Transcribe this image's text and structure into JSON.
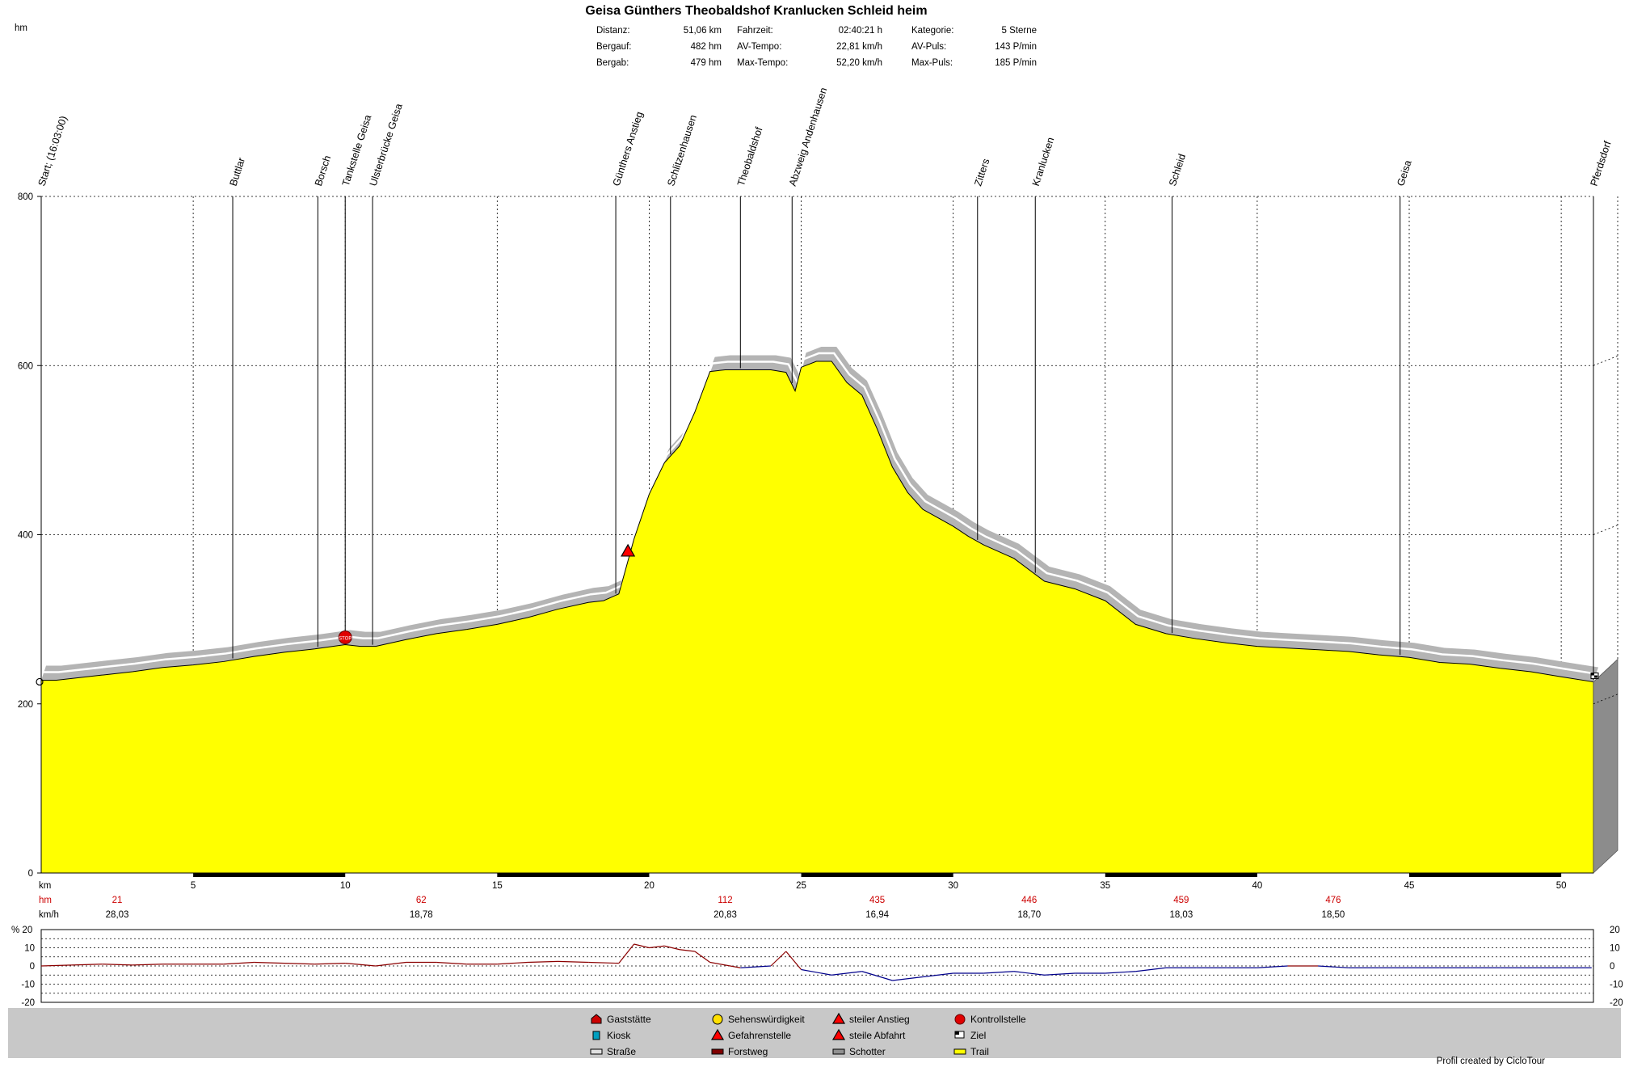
{
  "chart_data": {
    "type": "area",
    "title": "Geisa Günthers Theobaldshof Kranlucken Schleid heim",
    "yunit_label": "hm",
    "stats": [
      {
        "label": "Distanz:",
        "value": "51,06 km"
      },
      {
        "label": "Bergauf:",
        "value": "482 hm"
      },
      {
        "label": "Bergab:",
        "value": "479 hm"
      },
      {
        "label": "Fahrzeit:",
        "value": "02:40:21 h"
      },
      {
        "label": "AV-Tempo:",
        "value": "22,81 km/h"
      },
      {
        "label": "Max-Tempo:",
        "value": "52,20 km/h"
      },
      {
        "label": "Kategorie:",
        "value": "5 Sterne"
      },
      {
        "label": "AV-Puls:",
        "value": "143 P/min"
      },
      {
        "label": "Max-Puls:",
        "value": "185 P/min"
      }
    ],
    "xlim": [
      0,
      51.06
    ],
    "ylim": [
      0,
      800
    ],
    "x_ticks": [
      5,
      10,
      15,
      20,
      25,
      30,
      35,
      40,
      45,
      50
    ],
    "y_ticks": [
      0,
      200,
      400,
      600,
      800
    ],
    "grid": true,
    "profile": {
      "x": [
        0,
        0.5,
        1,
        2,
        3,
        4,
        5,
        6,
        7,
        8,
        9,
        10,
        10.5,
        11,
        12,
        13,
        14,
        15,
        16,
        17,
        18,
        18.5,
        19,
        19.5,
        20,
        20.5,
        21,
        21.5,
        22,
        22.5,
        23,
        24,
        24.5,
        24.8,
        25,
        25.5,
        26,
        26.5,
        27,
        27.5,
        28,
        28.5,
        29,
        30,
        30.5,
        31,
        32,
        33,
        34,
        35,
        36,
        37,
        38,
        39,
        40,
        41,
        42,
        43,
        44,
        45,
        46,
        47,
        48,
        49,
        50,
        51.06
      ],
      "y": [
        228,
        228,
        230,
        234,
        238,
        243,
        246,
        250,
        256,
        261,
        265,
        270,
        268,
        268,
        276,
        283,
        288,
        294,
        302,
        312,
        320,
        322,
        330,
        395,
        448,
        485,
        505,
        545,
        593,
        595,
        595,
        595,
        592,
        570,
        598,
        605,
        605,
        580,
        565,
        525,
        480,
        450,
        430,
        410,
        398,
        388,
        372,
        345,
        336,
        322,
        294,
        283,
        277,
        272,
        268,
        266,
        264,
        262,
        258,
        255,
        249,
        247,
        242,
        238,
        232,
        226
      ]
    },
    "speed_profile": {
      "ylim": [
        -20,
        20
      ],
      "y_ticks": [
        -20,
        -10,
        0,
        10,
        20
      ],
      "x": [
        0,
        1,
        2,
        3,
        4,
        5,
        6,
        7,
        8,
        9,
        10,
        11,
        12,
        13,
        14,
        15,
        16,
        17,
        18,
        19,
        19.5,
        20,
        20.5,
        21,
        21.5,
        22,
        23,
        24,
        24.5,
        25,
        26,
        27,
        28,
        29,
        30,
        31,
        32,
        33,
        34,
        35,
        36,
        37,
        38,
        39,
        40,
        41,
        42,
        43,
        44,
        45,
        46,
        47,
        48,
        49,
        50,
        51
      ],
      "y": [
        0,
        0.5,
        1,
        0.5,
        1,
        1,
        1,
        2,
        1.5,
        1,
        1.5,
        0,
        2,
        2,
        1,
        1,
        2,
        2.5,
        2,
        1.5,
        12,
        10,
        11,
        9,
        8,
        2,
        -1,
        0,
        8,
        -2,
        -5,
        -3,
        -8,
        -6,
        -4,
        -4,
        -3,
        -5,
        -4,
        -4,
        -3,
        -1,
        -1,
        -1,
        -1,
        0,
        0,
        -1,
        -1,
        -1,
        -1,
        -1,
        -1,
        -1,
        -1,
        -1
      ]
    },
    "waypoints": [
      {
        "name": "Start; (16:03:00)",
        "km": 0
      },
      {
        "name": "Buttlar",
        "km": 6.3
      },
      {
        "name": "Borsch",
        "km": 9.1
      },
      {
        "name": "Tankstelle Geisa",
        "km": 10.0
      },
      {
        "name": "Ulsterbrücke Geisa",
        "km": 10.9
      },
      {
        "name": "Günthers Anstieg",
        "km": 18.9
      },
      {
        "name": "Schlitzenhausen",
        "km": 20.7
      },
      {
        "name": "Theobaldshof",
        "km": 23.0
      },
      {
        "name": "Abzweig Andenhausen",
        "km": 24.7
      },
      {
        "name": "Zitters",
        "km": 30.8
      },
      {
        "name": "Kranlucken",
        "km": 32.7
      },
      {
        "name": "Schleid",
        "km": 37.2
      },
      {
        "name": "Geisa",
        "km": 44.7
      },
      {
        "name": "Pferdsdorf",
        "km": 51.06
      }
    ],
    "segment_rows": {
      "km_label": "km",
      "hm_label": "hm",
      "kmh_label": "km/h",
      "hm_values": [
        {
          "km": 2.5,
          "value": "21"
        },
        {
          "km": 12.5,
          "value": "62"
        },
        {
          "km": 22.5,
          "value": "112"
        },
        {
          "km": 27.5,
          "value": "435"
        },
        {
          "km": 32.5,
          "value": "446"
        },
        {
          "km": 37.5,
          "value": "459"
        },
        {
          "km": 42.5,
          "value": "476"
        }
      ],
      "kmh_values": [
        {
          "km": 2.5,
          "value": "28,03"
        },
        {
          "km": 12.5,
          "value": "18,78"
        },
        {
          "km": 22.5,
          "value": "20,83"
        },
        {
          "km": 27.5,
          "value": "16,94"
        },
        {
          "km": 32.5,
          "value": "18,70"
        },
        {
          "km": 37.5,
          "value": "18,03"
        },
        {
          "km": 42.5,
          "value": "18,50"
        }
      ]
    },
    "percent_label": "% 20",
    "legend": [
      {
        "label": "Gaststätte",
        "icon": "house-icon",
        "color": "#cc0000"
      },
      {
        "label": "Kiosk",
        "icon": "kiosk-icon",
        "color": "#00a0c0"
      },
      {
        "label": "Straße",
        "icon": "road-swatch-icon",
        "color": "#e0e0e0"
      },
      {
        "label": "Sehenswürdigkeit",
        "icon": "smiley-icon",
        "color": "#ffe000"
      },
      {
        "label": "Gefahrenstelle",
        "icon": "warning-icon",
        "color": "#ff0000"
      },
      {
        "label": "Forstweg",
        "icon": "forest-swatch-icon",
        "color": "#800000"
      },
      {
        "label": "steiler Anstieg",
        "icon": "steep-up-icon",
        "color": "#ff0000"
      },
      {
        "label": "steile Abfahrt",
        "icon": "steep-down-icon",
        "color": "#ff0000"
      },
      {
        "label": "Schotter",
        "icon": "gravel-swatch-icon",
        "color": "#909090"
      },
      {
        "label": "Kontrollstelle",
        "icon": "stop-icon",
        "color": "#e00000"
      },
      {
        "label": "Ziel",
        "icon": "finish-flag-icon",
        "color": "#000000"
      },
      {
        "label": "Trail",
        "icon": "trail-swatch-icon",
        "color": "#ffff00"
      }
    ],
    "credit": "Profil created by CicloTour",
    "colors": {
      "fill": "#ffff00",
      "shadow": "#b4b4b4",
      "grade_up": "#8b0000",
      "grade_down": "#00008b"
    }
  }
}
